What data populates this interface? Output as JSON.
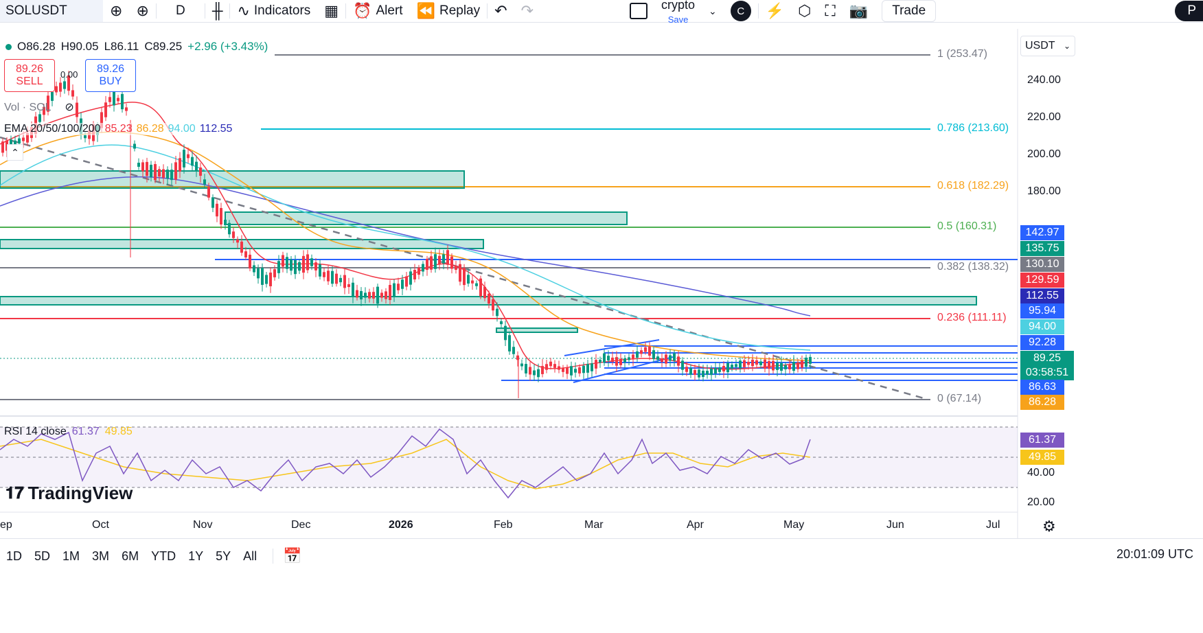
{
  "toolbar": {
    "symbol": "SOLUSDT",
    "interval": "D",
    "indicators": "Indicators",
    "alert": "Alert",
    "replay": "Replay",
    "layout_name": "crypto",
    "layout_save": "Save",
    "avatar_letter": "C",
    "trade": "Trade",
    "publish": "P"
  },
  "ohlc": {
    "o": "O86.28",
    "h": "H90.05",
    "l": "L86.11",
    "c": "C89.25",
    "change": "+2.96 (+3.43%)"
  },
  "trade": {
    "sell_price": "89.26",
    "sell_label": "SELL",
    "spread": "0.00",
    "buy_price": "89.26",
    "buy_label": "BUY"
  },
  "vol_label": "Vol · SOL",
  "ema": {
    "label": "EMA 20/50/100/200",
    "v20": "85.23",
    "v50": "86.28",
    "v100": "94.00",
    "v200": "112.55",
    "c20": "#f23645",
    "c50": "#f7a21b",
    "c100": "#4dd0e1",
    "c200": "#2a2bb5"
  },
  "rsi": {
    "label": "RSI 14 close",
    "value": "61.37",
    "ma": "49.85"
  },
  "logo": "TradingView",
  "currency": "USDT",
  "price_axis": [
    "240.00",
    "220.00",
    "200.00",
    "180.00",
    "40.00",
    "20.00"
  ],
  "price_labels": [
    {
      "text": "142.97",
      "color": "#2962ff"
    },
    {
      "text": "135.75",
      "color": "#089981"
    },
    {
      "text": "130.10",
      "color": "#787b86"
    },
    {
      "text": "129.59",
      "color": "#f23645"
    },
    {
      "text": "112.55",
      "color": "#2a2bb5"
    },
    {
      "text": "95.94",
      "color": "#2962ff"
    },
    {
      "text": "94.00",
      "color": "#4dd0e1"
    },
    {
      "text": "92.28",
      "color": "#2962ff"
    },
    {
      "text": "89.25",
      "color": "#089981"
    },
    {
      "text": "03:58:51",
      "color": "#089981"
    },
    {
      "text": "86.63",
      "color": "#2962ff"
    },
    {
      "text": "86.28",
      "color": "#f7a21b"
    },
    {
      "text": "61.37",
      "color": "#7e57c2"
    },
    {
      "text": "49.85",
      "color": "#f7c51b"
    }
  ],
  "fib": [
    {
      "text": "1 (253.47)",
      "color": "#787b86"
    },
    {
      "text": "0.786 (213.60)",
      "color": "#00bcd4"
    },
    {
      "text": "0.618 (182.29)",
      "color": "#f7a21b"
    },
    {
      "text": "0.5 (160.31)",
      "color": "#4caf50"
    },
    {
      "text": "0.382 (138.32)",
      "color": "#787b86"
    },
    {
      "text": "0.236 (111.11)",
      "color": "#f23645"
    },
    {
      "text": "0 (67.14)",
      "color": "#787b86"
    }
  ],
  "time_axis": [
    "ep",
    "Oct",
    "Nov",
    "Dec",
    "2026",
    "Feb",
    "Mar",
    "Apr",
    "May",
    "Jun",
    "Jul"
  ],
  "ranges": [
    "1D",
    "5D",
    "1M",
    "3M",
    "6M",
    "YTD",
    "1Y",
    "5Y",
    "All"
  ],
  "clock": "20:01:09 UTC"
}
